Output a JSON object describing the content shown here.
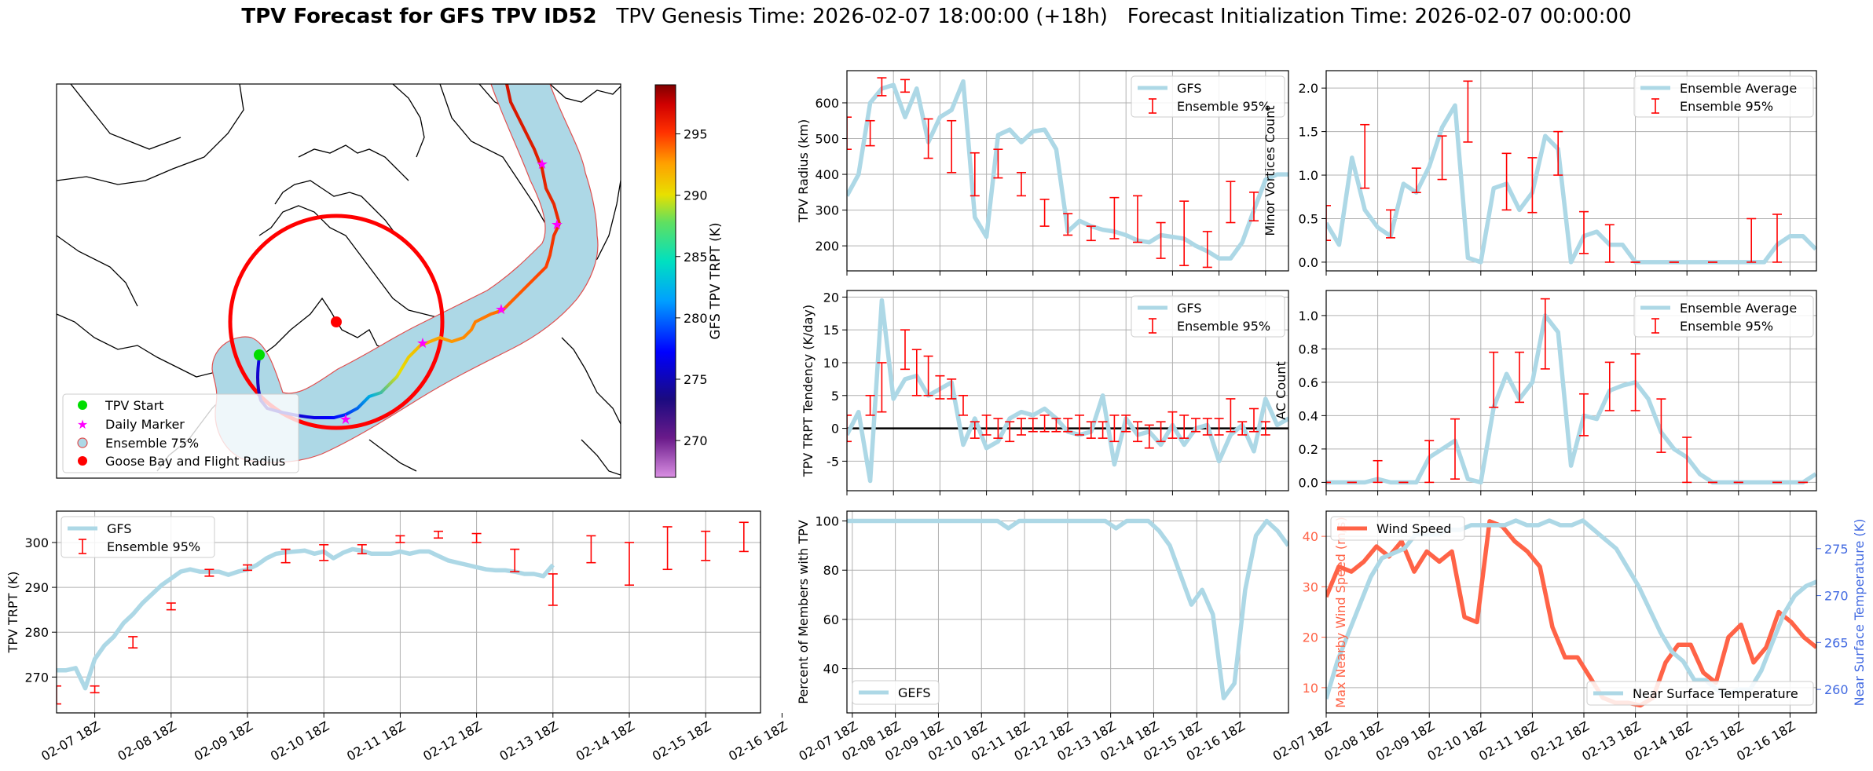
{
  "header": {
    "title_bold": "TPV Forecast for GFS TPV ID52",
    "genesis": "TPV Genesis Time: 2026-02-07 18:00:00 (+18h)",
    "init": "Forecast Initialization Time: 2026-02-07 00:00:00"
  },
  "colors": {
    "gfs_line": "#ADD8E6",
    "ensemble_err": "#FF0000",
    "wind": "#FF6347",
    "temp_axis": "#4169E1",
    "ensemble_region": "#ADD8E6",
    "goose_bay": "#FF0000",
    "tpv_start": "#00DD00",
    "daily_marker": "#FF00FF"
  },
  "x_tick_labels": [
    "02-07 18Z",
    "02-08 18Z",
    "02-09 18Z",
    "02-10 18Z",
    "02-11 18Z",
    "02-12 18Z",
    "02-13 18Z",
    "02-14 18Z",
    "02-15 18Z",
    "02-16 18Z"
  ],
  "chart_data": [
    {
      "id": "map",
      "type": "map",
      "colorbar": {
        "label": "GFS TPV TRPT (K)",
        "ticks": [
          270,
          275,
          280,
          285,
          290,
          295
        ],
        "range": [
          267,
          299
        ]
      },
      "legend": [
        "TPV Start",
        "Daily Marker",
        "Ensemble 75%",
        "Goose Bay and Flight Radius"
      ],
      "legend_loc": "lower-left"
    },
    {
      "id": "radius",
      "type": "line",
      "ylabel": "TPV Radius (km)",
      "ylim": [
        130,
        690
      ],
      "yticks": [
        200,
        300,
        400,
        500,
        600
      ],
      "legend": [
        "GFS",
        "Ensemble 95%"
      ],
      "legend_loc": "upper-right",
      "gfs": [
        340,
        400,
        600,
        640,
        650,
        560,
        640,
        490,
        560,
        580,
        660,
        280,
        225,
        510,
        525,
        490,
        520,
        525,
        470,
        240,
        270,
        255,
        245,
        240,
        230,
        215,
        210,
        230,
        225,
        220,
        200,
        185,
        165,
        165,
        210,
        300,
        385,
        400,
        400
      ],
      "ens": [
        [
          0,
          470,
          560
        ],
        [
          2,
          480,
          550
        ],
        [
          3,
          620,
          670
        ],
        [
          5,
          630,
          665
        ],
        [
          7,
          445,
          555
        ],
        [
          9,
          405,
          550
        ],
        [
          11,
          340,
          460
        ],
        [
          13,
          390,
          470
        ],
        [
          15,
          340,
          405
        ],
        [
          17,
          255,
          330
        ],
        [
          19,
          230,
          290
        ],
        [
          21,
          215,
          255
        ],
        [
          23,
          220,
          335
        ],
        [
          25,
          210,
          340
        ],
        [
          27,
          165,
          265
        ],
        [
          29,
          145,
          325
        ],
        [
          31,
          140,
          240
        ],
        [
          33,
          265,
          380
        ],
        [
          35,
          270,
          350
        ]
      ]
    },
    {
      "id": "minor",
      "type": "line",
      "ylabel": "Minor Vortices Count",
      "ylim": [
        -0.1,
        2.2
      ],
      "yticks": [
        0.0,
        0.5,
        1.0,
        1.5,
        2.0
      ],
      "legend": [
        "Ensemble Average",
        "Ensemble 95%"
      ],
      "legend_loc": "upper-right",
      "gfs": [
        0.45,
        0.2,
        1.2,
        0.6,
        0.4,
        0.3,
        0.9,
        0.8,
        1.1,
        1.55,
        1.8,
        0.05,
        0.0,
        0.85,
        0.9,
        0.6,
        0.8,
        1.45,
        1.3,
        0.0,
        0.3,
        0.35,
        0.2,
        0.2,
        0.0,
        0.0,
        0.0,
        0.0,
        0.0,
        0.0,
        0.0,
        0.0,
        0.0,
        0.0,
        0.0,
        0.2,
        0.3,
        0.3,
        0.15
      ],
      "ens": [
        [
          0,
          0.25,
          0.65
        ],
        [
          3,
          0.85,
          1.58
        ],
        [
          5,
          0.28,
          0.6
        ],
        [
          7,
          0.8,
          1.08
        ],
        [
          9,
          0.95,
          1.45
        ],
        [
          11,
          1.38,
          2.08
        ],
        [
          14,
          0.6,
          1.25
        ],
        [
          16,
          0.57,
          1.2
        ],
        [
          18,
          1.0,
          1.5
        ],
        [
          20,
          0.1,
          0.58
        ],
        [
          22,
          0.0,
          0.43
        ],
        [
          24,
          0.0,
          0.0
        ],
        [
          27,
          0.0,
          0.0
        ],
        [
          30,
          0.0,
          0.0
        ],
        [
          33,
          0.0,
          0.5
        ],
        [
          35,
          0.0,
          0.55
        ]
      ]
    },
    {
      "id": "tendency",
      "type": "line",
      "ylabel": "TPV TRPT Tendency (K/day)",
      "ylim": [
        -9.5,
        21
      ],
      "yticks": [
        -5,
        0,
        5,
        10,
        15,
        20
      ],
      "zero_line": true,
      "legend": [
        "GFS",
        "Ensemble 95%"
      ],
      "legend_loc": "upper-right",
      "gfs": [
        -1,
        2.5,
        -8,
        19.5,
        4.5,
        7.5,
        8,
        5,
        6,
        7,
        -2.5,
        1.5,
        -3,
        -2,
        1.5,
        2.5,
        2,
        3,
        1.5,
        -0.5,
        -1,
        -0.5,
        5,
        -5.5,
        1.5,
        -1,
        -0.5,
        -2.5,
        0.5,
        -2.5,
        0,
        0.5,
        -5,
        -1,
        0.5,
        -3.5,
        4.5,
        0.5,
        1.5
      ],
      "ens": [
        [
          0,
          -2,
          2
        ],
        [
          2,
          2,
          5
        ],
        [
          3,
          2.5,
          10
        ],
        [
          5,
          9,
          15
        ],
        [
          6,
          5,
          12
        ],
        [
          7,
          5,
          11
        ],
        [
          8,
          4.5,
          8
        ],
        [
          9,
          4.5,
          7.5
        ],
        [
          10,
          2,
          5
        ],
        [
          11,
          -1.5,
          1
        ],
        [
          12,
          -1,
          2
        ],
        [
          13,
          -1.5,
          1.5
        ],
        [
          14,
          -2,
          1
        ],
        [
          15,
          -1,
          1.5
        ],
        [
          16,
          -0.5,
          1.5
        ],
        [
          17,
          -0.5,
          2
        ],
        [
          18,
          -0.5,
          1.5
        ],
        [
          19,
          -0.5,
          1.5
        ],
        [
          20,
          -1,
          2
        ],
        [
          21,
          -1.5,
          1
        ],
        [
          22,
          -1.5,
          1
        ],
        [
          23,
          -2,
          2
        ],
        [
          24,
          -0.5,
          2
        ],
        [
          25,
          -2,
          1
        ],
        [
          26,
          -3,
          0.5
        ],
        [
          27,
          -2,
          1
        ],
        [
          28,
          -1.5,
          2.5
        ],
        [
          29,
          -1.5,
          2
        ],
        [
          30,
          -0.5,
          1.5
        ],
        [
          31,
          -1,
          1.5
        ],
        [
          32,
          -1,
          1.5
        ],
        [
          33,
          -0.5,
          4.5
        ],
        [
          34,
          -1,
          1
        ],
        [
          35,
          -0.5,
          3
        ],
        [
          36,
          -1,
          1
        ]
      ]
    },
    {
      "id": "ac",
      "type": "line",
      "ylabel": "AC Count",
      "ylim": [
        -0.05,
        1.15
      ],
      "yticks": [
        0.0,
        0.2,
        0.4,
        0.6,
        0.8,
        1.0
      ],
      "legend": [
        "Ensemble Average",
        "Ensemble 95%"
      ],
      "legend_loc": "upper-right",
      "gfs": [
        0.0,
        0.0,
        0.0,
        0.0,
        0.02,
        0.0,
        0.0,
        0.0,
        0.15,
        0.2,
        0.25,
        0.02,
        0.0,
        0.45,
        0.65,
        0.5,
        0.6,
        1.0,
        0.9,
        0.1,
        0.4,
        0.38,
        0.55,
        0.58,
        0.6,
        0.5,
        0.3,
        0.2,
        0.15,
        0.05,
        0.0,
        0.0,
        0.0,
        0.0,
        0.0,
        0.0,
        0.0,
        0.0,
        0.05
      ],
      "ens": [
        [
          0,
          0.0,
          0.0
        ],
        [
          2,
          0.0,
          0.0
        ],
        [
          4,
          0.0,
          0.13
        ],
        [
          6,
          0.0,
          0.0
        ],
        [
          8,
          0.0,
          0.25
        ],
        [
          10,
          0.02,
          0.38
        ],
        [
          13,
          0.45,
          0.78
        ],
        [
          15,
          0.48,
          0.78
        ],
        [
          17,
          0.68,
          1.1
        ],
        [
          20,
          0.28,
          0.53
        ],
        [
          22,
          0.43,
          0.72
        ],
        [
          24,
          0.43,
          0.77
        ],
        [
          26,
          0.18,
          0.5
        ],
        [
          28,
          0.0,
          0.27
        ],
        [
          30,
          0.0,
          0.0
        ],
        [
          32,
          0.0,
          0.0
        ],
        [
          35,
          0.0,
          0.0
        ],
        [
          37,
          0.0,
          0.0
        ]
      ]
    },
    {
      "id": "trpt",
      "type": "line",
      "ylabel": "TPV TRPT (K)",
      "ylim": [
        262,
        307
      ],
      "yticks": [
        270,
        280,
        290,
        300
      ],
      "legend": [
        "GFS",
        "Ensemble 95%"
      ],
      "legend_loc": "upper-left",
      "gfs": [
        271.5,
        271.5,
        272,
        267.5,
        274,
        277,
        279,
        282,
        284,
        286.5,
        288.5,
        290.5,
        292,
        293.5,
        294,
        293.5,
        293.5,
        293.5,
        292.8,
        293.5,
        294,
        295,
        296.5,
        297.5,
        297.8,
        298,
        298.2,
        297.5,
        298,
        296.5,
        297.7,
        298.5,
        298.2,
        297.5,
        297.5,
        297.5,
        298,
        297.5,
        298,
        298,
        297,
        296,
        295.5,
        295,
        294.5,
        294,
        293.8,
        293.8,
        293.5,
        293,
        293,
        292.5,
        295
      ],
      "ens": [
        [
          0,
          264,
          268
        ],
        [
          4,
          266.5,
          268
        ],
        [
          8,
          276.5,
          279
        ],
        [
          12,
          285,
          286.5
        ],
        [
          16,
          292.5,
          294
        ],
        [
          20,
          293.8,
          295
        ],
        [
          24,
          295.5,
          298.5
        ],
        [
          28,
          296,
          299.5
        ],
        [
          32,
          297.5,
          299.5
        ],
        [
          36,
          300,
          301.5
        ],
        [
          40,
          301,
          302.5
        ],
        [
          44,
          300,
          302
        ],
        [
          48,
          293.5,
          298.5
        ],
        [
          52,
          286,
          293
        ],
        [
          56,
          295.5,
          301.5
        ],
        [
          60,
          290.5,
          300
        ],
        [
          64,
          294,
          303.5
        ],
        [
          68,
          296,
          302.5
        ],
        [
          72,
          298,
          304.5
        ],
        [
          76,
          300,
          305
        ]
      ]
    },
    {
      "id": "percent",
      "type": "line",
      "ylabel": "Percent of Members with TPV",
      "ylim": [
        22,
        104
      ],
      "yticks": [
        40,
        60,
        80,
        100
      ],
      "legend": [
        "GEFS"
      ],
      "legend_loc": "lower-left",
      "gfs": [
        100,
        100,
        100,
        100,
        100,
        100,
        100,
        100,
        100,
        100,
        100,
        100,
        100,
        100,
        100,
        97,
        100,
        100,
        100,
        100,
        100,
        100,
        100,
        100,
        100,
        97,
        100,
        100,
        100,
        96,
        90,
        78,
        66,
        72,
        62,
        28,
        34,
        72,
        94,
        100,
        96,
        90
      ]
    },
    {
      "id": "wind_temp",
      "type": "line",
      "ylabel": "Max Nearby Wind Speed (m/s)",
      "ylabel_right": "Near Surface Temperature (K)",
      "ylim": [
        5,
        45
      ],
      "yticks": [
        10,
        20,
        30,
        40
      ],
      "ylim_right": [
        257.5,
        279
      ],
      "yticks_right": [
        260,
        265,
        270,
        275
      ],
      "legend": [
        "Wind Speed",
        "Near Surface Temperature"
      ],
      "legend_loc": "upper-left / lower-right",
      "wind": [
        28,
        34,
        33,
        35,
        38,
        36,
        39,
        33,
        37,
        35,
        37,
        24,
        23,
        43,
        42,
        39,
        37,
        34,
        22,
        16,
        16,
        12,
        8,
        7,
        7,
        6.5,
        8,
        15,
        18.5,
        18.5,
        13,
        11,
        20,
        22.5,
        15,
        18,
        25,
        23,
        20,
        18
      ],
      "temp": [
        259,
        263,
        266,
        269,
        272,
        274,
        274.5,
        275,
        276.5,
        276.5,
        276.5,
        277,
        277,
        277.5,
        277.5,
        277.5,
        277.5,
        278,
        277.5,
        277.5,
        278,
        277.5,
        277.5,
        278,
        277,
        276,
        275,
        273,
        271,
        268.5,
        266,
        264,
        263,
        261,
        261,
        260,
        259.5,
        260,
        260,
        262,
        265,
        268,
        270,
        271,
        271.5
      ]
    }
  ]
}
